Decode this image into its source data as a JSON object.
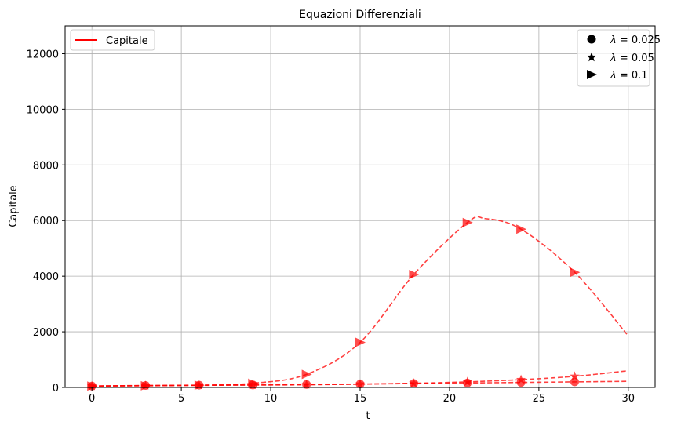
{
  "chart_data": {
    "type": "line",
    "title": "Equazioni Differenziali",
    "xlabel": "t",
    "ylabel": "Capitale",
    "xlim": [
      -1.5,
      31.5
    ],
    "ylim": [
      0,
      13000
    ],
    "xticks": [
      0,
      5,
      10,
      15,
      20,
      25,
      30
    ],
    "yticks": [
      0,
      2000,
      4000,
      6000,
      8000,
      10000,
      12000
    ],
    "grid": true,
    "color": "#ff0000",
    "legend_lines": {
      "placement": "top-left",
      "entries": [
        "Capitale"
      ]
    },
    "legend_markers": {
      "placement": "top-right",
      "entries": [
        {
          "marker": "circle",
          "label_prefix": "λ = ",
          "label_value": "0.025"
        },
        {
          "marker": "star",
          "label_prefix": "λ = ",
          "label_value": "0.05"
        },
        {
          "marker": "triangle-right",
          "label_prefix": "λ = ",
          "label_value": "0.1"
        }
      ]
    },
    "series": [
      {
        "marker": "circle",
        "x": [
          0,
          3,
          6,
          9,
          12,
          15,
          18,
          21,
          24,
          27,
          30
        ],
        "y": [
          50,
          70,
          80,
          90,
          105,
          120,
          140,
          160,
          180,
          200,
          220
        ],
        "marker_x": [
          0,
          3,
          6,
          9,
          12,
          15,
          18,
          21,
          24,
          27
        ]
      },
      {
        "marker": "star",
        "x": [
          0,
          3,
          6,
          9,
          12,
          15,
          18,
          21,
          24,
          27,
          30
        ],
        "y": [
          50,
          65,
          75,
          85,
          95,
          120,
          150,
          200,
          280,
          400,
          600
        ],
        "marker_x": [
          0,
          3,
          6,
          9,
          12,
          15,
          18,
          21,
          24,
          27
        ]
      },
      {
        "marker": "triangle-right",
        "x": [
          0,
          3,
          6,
          9,
          12,
          15,
          18,
          21,
          22,
          24,
          27,
          30
        ],
        "y": [
          50,
          60,
          80,
          150,
          470,
          1620,
          4060,
          5930,
          6070,
          5690,
          4140,
          1850
        ],
        "marker_x": [
          0,
          3,
          6,
          9,
          12,
          15,
          18,
          21,
          24,
          27
        ]
      }
    ]
  }
}
